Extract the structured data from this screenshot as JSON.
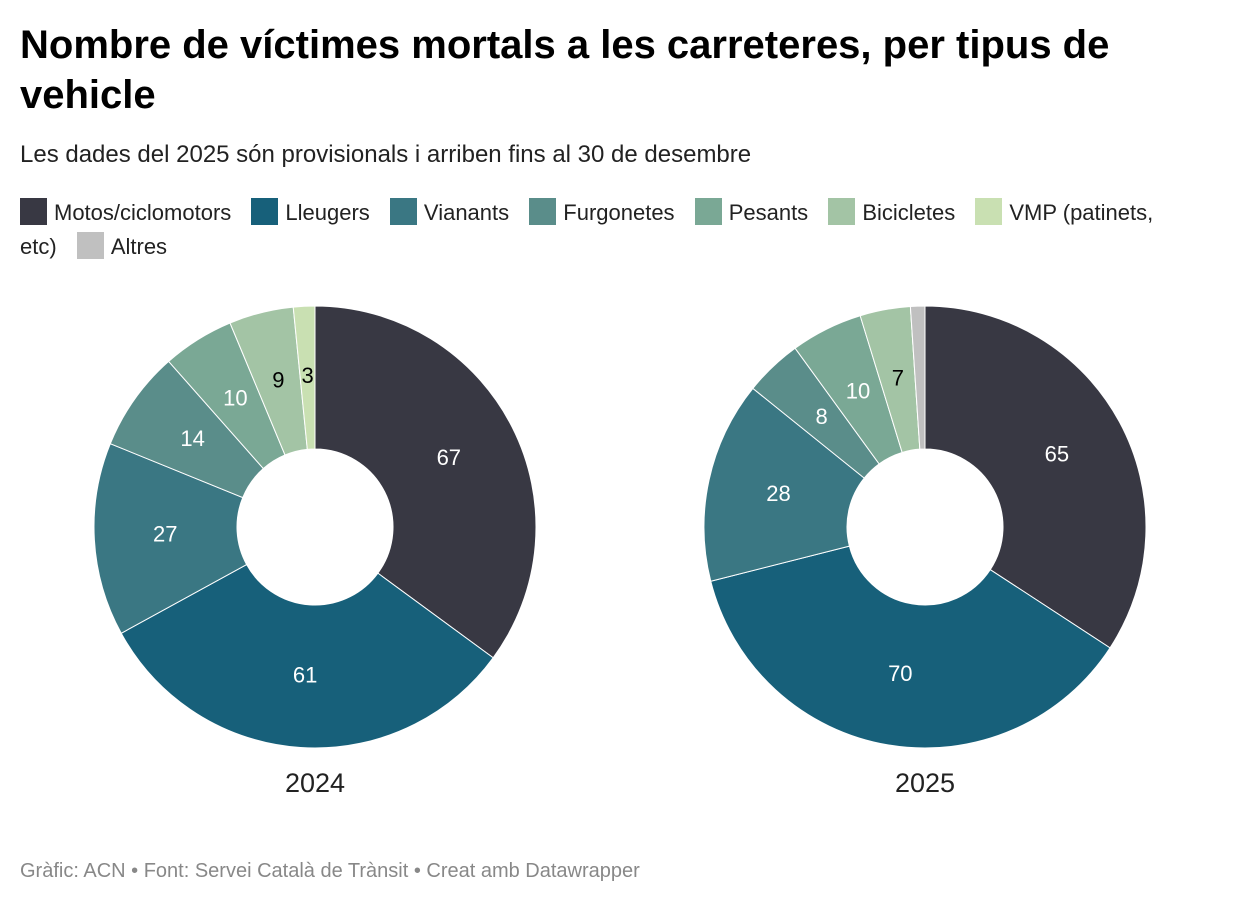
{
  "title": "Nombre de víctimes mortals a les carreteres, per tipus de vehicle",
  "subtitle": "Les dades del 2025 són provisionals i arriben fins al 30 de desembre",
  "footer": "Gràfic: ACN • Font: Servei Català de Trànsit • Creat amb Datawrapper",
  "chart_data": [
    {
      "type": "donut",
      "title": "2024",
      "categories": [
        "Motos/ciclomotors",
        "Lleugers",
        "Vianants",
        "Furgonetes",
        "Pesants",
        "Bicicletes",
        "VMP (patinets, etc)",
        "Altres"
      ],
      "colors": [
        "#383843",
        "#17607a",
        "#3a7783",
        "#5a8d8a",
        "#7aa895",
        "#a3c4a5",
        "#c9e0b2",
        "#c0c0c0"
      ],
      "values": [
        67,
        61,
        27,
        14,
        10,
        9,
        3,
        0
      ]
    },
    {
      "type": "donut",
      "title": "2025",
      "categories": [
        "Motos/ciclomotors",
        "Lleugers",
        "Vianants",
        "Furgonetes",
        "Pesants",
        "Bicicletes",
        "VMP (patinets, etc)",
        "Altres"
      ],
      "colors": [
        "#383843",
        "#17607a",
        "#3a7783",
        "#5a8d8a",
        "#7aa895",
        "#a3c4a5",
        "#c9e0b2",
        "#c0c0c0"
      ],
      "values": [
        65,
        70,
        28,
        8,
        10,
        7,
        0,
        2
      ]
    }
  ]
}
